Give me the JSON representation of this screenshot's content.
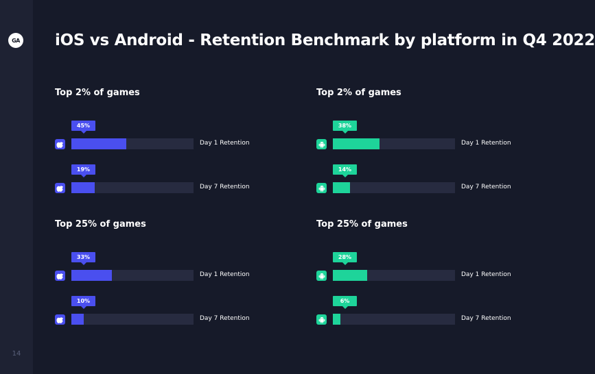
{
  "page": {
    "title": "iOS vs Android - Retention Benchmark by platform in Q4 2022",
    "page_number": "14",
    "logo_text": "GA"
  },
  "colors": {
    "background": "#161a29",
    "sidebar": "#1e2233",
    "ios": "#4a4fef",
    "android": "#1ed49a",
    "track": "#272b40"
  },
  "chart_data": [
    {
      "type": "bar",
      "title": "Top 2% of games",
      "platform": "ios",
      "icon": "apple-icon",
      "categories": [
        "Day 1 Retention",
        "Day 7 Retention"
      ],
      "values": [
        45,
        19
      ],
      "value_labels": [
        "45%",
        "19%"
      ],
      "xlim": [
        0,
        100
      ],
      "orientation": "horizontal"
    },
    {
      "type": "bar",
      "title": "Top 2% of games",
      "platform": "android",
      "icon": "android-icon",
      "categories": [
        "Day 1 Retention",
        "Day 7 Retention"
      ],
      "values": [
        38,
        14
      ],
      "value_labels": [
        "38%",
        "14%"
      ],
      "xlim": [
        0,
        100
      ],
      "orientation": "horizontal"
    },
    {
      "type": "bar",
      "title": "Top 25% of games",
      "platform": "ios",
      "icon": "apple-icon",
      "categories": [
        "Day 1 Retention",
        "Day 7 Retention"
      ],
      "values": [
        33,
        10
      ],
      "value_labels": [
        "33%",
        "10%"
      ],
      "xlim": [
        0,
        100
      ],
      "orientation": "horizontal"
    },
    {
      "type": "bar",
      "title": "Top 25% of games",
      "platform": "android",
      "icon": "android-icon",
      "categories": [
        "Day 1 Retention",
        "Day 7 Retention"
      ],
      "values": [
        28,
        6
      ],
      "value_labels": [
        "28%",
        "6%"
      ],
      "xlim": [
        0,
        100
      ],
      "orientation": "horizontal"
    }
  ]
}
